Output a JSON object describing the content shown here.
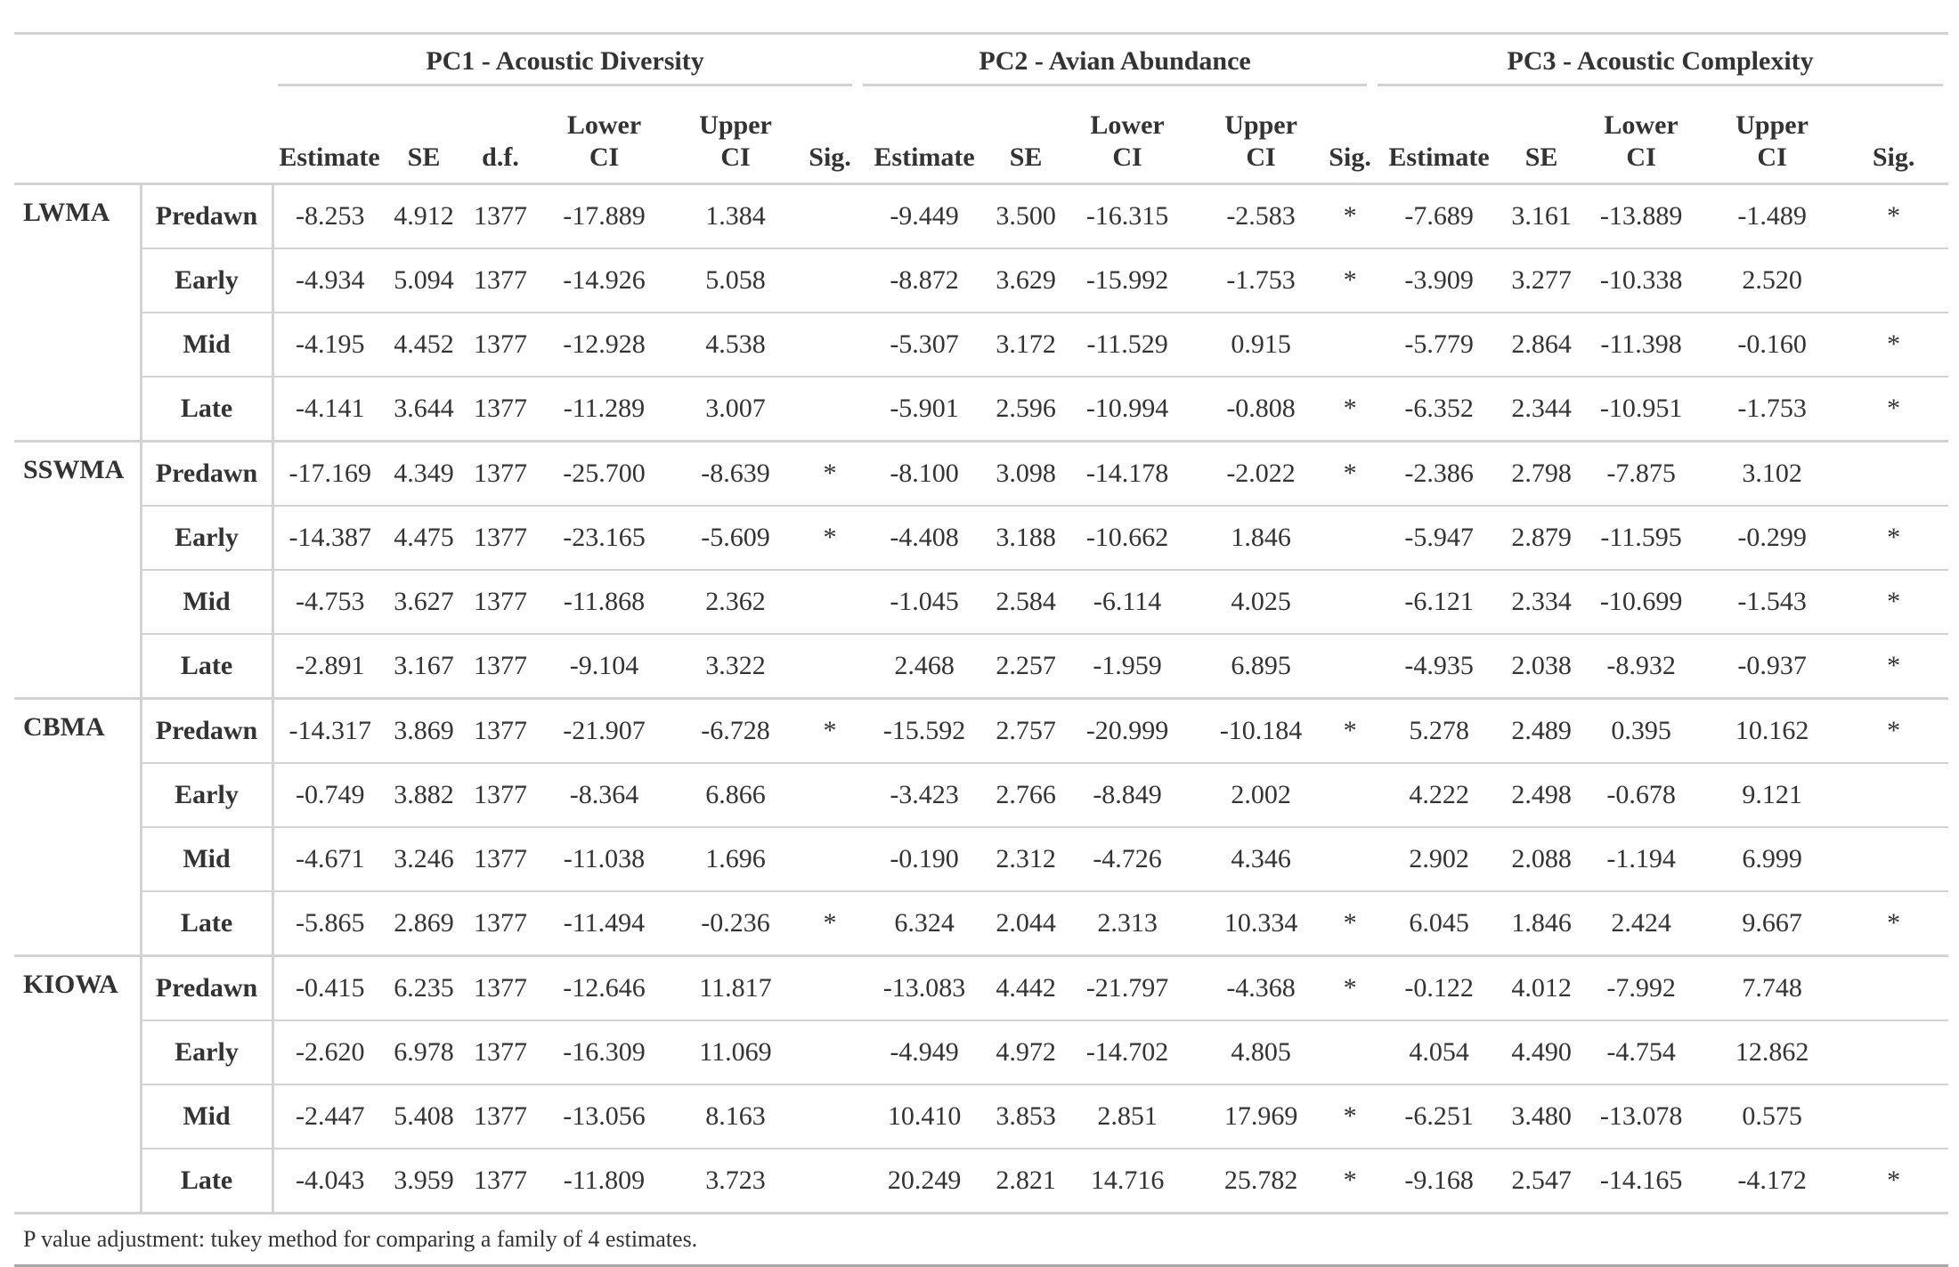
{
  "table": {
    "groups": [
      {
        "label": "PC1 - Acoustic Diversity"
      },
      {
        "label": "PC2 - Avian Abundance"
      },
      {
        "label": "PC3 - Acoustic Complexity"
      }
    ],
    "pc1_columns": [
      {
        "line1": "",
        "line2": "Estimate"
      },
      {
        "line1": "",
        "line2": "SE"
      },
      {
        "line1": "",
        "line2": "d.f."
      },
      {
        "line1": "Lower",
        "line2": "CI"
      },
      {
        "line1": "Upper",
        "line2": "CI"
      },
      {
        "line1": "",
        "line2": "Sig."
      }
    ],
    "pc2_columns": [
      {
        "line1": "",
        "line2": "Estimate"
      },
      {
        "line1": "",
        "line2": "SE"
      },
      {
        "line1": "Lower",
        "line2": "CI"
      },
      {
        "line1": "Upper",
        "line2": "CI"
      },
      {
        "line1": "",
        "line2": "Sig."
      }
    ],
    "pc3_columns": [
      {
        "line1": "",
        "line2": "Estimate"
      },
      {
        "line1": "",
        "line2": "SE"
      },
      {
        "line1": "Lower",
        "line2": "CI"
      },
      {
        "line1": "Upper",
        "line2": "CI"
      },
      {
        "line1": "",
        "line2": "Sig."
      }
    ],
    "sites": [
      {
        "name": "LWMA",
        "rows": [
          {
            "period": "Predawn",
            "values": [
              "-8.253",
              "4.912",
              "1377",
              "-17.889",
              "1.384",
              "",
              "-9.449",
              "3.500",
              "-16.315",
              "-2.583",
              "*",
              "-7.689",
              "3.161",
              "-13.889",
              "-1.489",
              "*"
            ]
          },
          {
            "period": "Early",
            "values": [
              "-4.934",
              "5.094",
              "1377",
              "-14.926",
              "5.058",
              "",
              "-8.872",
              "3.629",
              "-15.992",
              "-1.753",
              "*",
              "-3.909",
              "3.277",
              "-10.338",
              "2.520",
              ""
            ]
          },
          {
            "period": "Mid",
            "values": [
              "-4.195",
              "4.452",
              "1377",
              "-12.928",
              "4.538",
              "",
              "-5.307",
              "3.172",
              "-11.529",
              "0.915",
              "",
              "-5.779",
              "2.864",
              "-11.398",
              "-0.160",
              "*"
            ]
          },
          {
            "period": "Late",
            "values": [
              "-4.141",
              "3.644",
              "1377",
              "-11.289",
              "3.007",
              "",
              "-5.901",
              "2.596",
              "-10.994",
              "-0.808",
              "*",
              "-6.352",
              "2.344",
              "-10.951",
              "-1.753",
              "*"
            ]
          }
        ]
      },
      {
        "name": "SSWMA",
        "rows": [
          {
            "period": "Predawn",
            "values": [
              "-17.169",
              "4.349",
              "1377",
              "-25.700",
              "-8.639",
              "*",
              "-8.100",
              "3.098",
              "-14.178",
              "-2.022",
              "*",
              "-2.386",
              "2.798",
              "-7.875",
              "3.102",
              ""
            ]
          },
          {
            "period": "Early",
            "values": [
              "-14.387",
              "4.475",
              "1377",
              "-23.165",
              "-5.609",
              "*",
              "-4.408",
              "3.188",
              "-10.662",
              "1.846",
              "",
              "-5.947",
              "2.879",
              "-11.595",
              "-0.299",
              "*"
            ]
          },
          {
            "period": "Mid",
            "values": [
              "-4.753",
              "3.627",
              "1377",
              "-11.868",
              "2.362",
              "",
              "-1.045",
              "2.584",
              "-6.114",
              "4.025",
              "",
              "-6.121",
              "2.334",
              "-10.699",
              "-1.543",
              "*"
            ]
          },
          {
            "period": "Late",
            "values": [
              "-2.891",
              "3.167",
              "1377",
              "-9.104",
              "3.322",
              "",
              "2.468",
              "2.257",
              "-1.959",
              "6.895",
              "",
              "-4.935",
              "2.038",
              "-8.932",
              "-0.937",
              "*"
            ]
          }
        ]
      },
      {
        "name": "CBMA",
        "rows": [
          {
            "period": "Predawn",
            "values": [
              "-14.317",
              "3.869",
              "1377",
              "-21.907",
              "-6.728",
              "*",
              "-15.592",
              "2.757",
              "-20.999",
              "-10.184",
              "*",
              "5.278",
              "2.489",
              "0.395",
              "10.162",
              "*"
            ]
          },
          {
            "period": "Early",
            "values": [
              "-0.749",
              "3.882",
              "1377",
              "-8.364",
              "6.866",
              "",
              "-3.423",
              "2.766",
              "-8.849",
              "2.002",
              "",
              "4.222",
              "2.498",
              "-0.678",
              "9.121",
              ""
            ]
          },
          {
            "period": "Mid",
            "values": [
              "-4.671",
              "3.246",
              "1377",
              "-11.038",
              "1.696",
              "",
              "-0.190",
              "2.312",
              "-4.726",
              "4.346",
              "",
              "2.902",
              "2.088",
              "-1.194",
              "6.999",
              ""
            ]
          },
          {
            "period": "Late",
            "values": [
              "-5.865",
              "2.869",
              "1377",
              "-11.494",
              "-0.236",
              "*",
              "6.324",
              "2.044",
              "2.313",
              "10.334",
              "*",
              "6.045",
              "1.846",
              "2.424",
              "9.667",
              "*"
            ]
          }
        ]
      },
      {
        "name": "KIOWA",
        "rows": [
          {
            "period": "Predawn",
            "values": [
              "-0.415",
              "6.235",
              "1377",
              "-12.646",
              "11.817",
              "",
              "-13.083",
              "4.442",
              "-21.797",
              "-4.368",
              "*",
              "-0.122",
              "4.012",
              "-7.992",
              "7.748",
              ""
            ]
          },
          {
            "period": "Early",
            "values": [
              "-2.620",
              "6.978",
              "1377",
              "-16.309",
              "11.069",
              "",
              "-4.949",
              "4.972",
              "-14.702",
              "4.805",
              "",
              "4.054",
              "4.490",
              "-4.754",
              "12.862",
              ""
            ]
          },
          {
            "period": "Mid",
            "values": [
              "-2.447",
              "5.408",
              "1377",
              "-13.056",
              "8.163",
              "",
              "10.410",
              "3.853",
              "2.851",
              "17.969",
              "*",
              "-6.251",
              "3.480",
              "-13.078",
              "0.575",
              ""
            ]
          },
          {
            "period": "Late",
            "values": [
              "-4.043",
              "3.959",
              "1377",
              "-11.809",
              "3.723",
              "",
              "20.249",
              "2.821",
              "14.716",
              "25.782",
              "*",
              "-9.168",
              "2.547",
              "-14.165",
              "-4.172",
              "*"
            ]
          }
        ]
      }
    ],
    "footnote": "P value adjustment: tukey method for comparing a family of 4 estimates."
  }
}
